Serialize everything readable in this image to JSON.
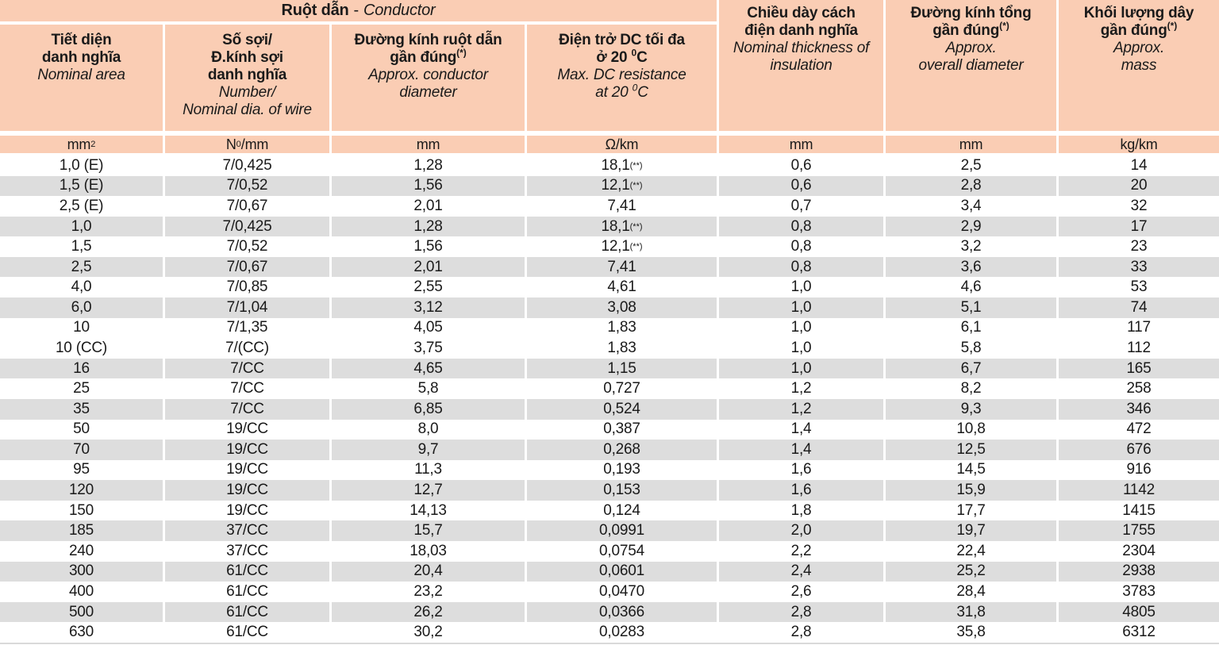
{
  "banner": {
    "vi": "Ruột dẫn",
    "dash": "-",
    "en": "Conductor"
  },
  "columns": [
    {
      "id": "nominal-area",
      "vi": [
        "Tiết diện",
        "danh nghĩa"
      ],
      "en": [
        "Nominal area"
      ],
      "unit": "mm^{2}"
    },
    {
      "id": "number-nominal-dia-of-wire",
      "vi": [
        "Số sợi/",
        "Đ.kính sợi",
        "danh nghĩa"
      ],
      "en": [
        "Number/",
        "Nominal dia. of wire"
      ],
      "unit": "N^{0}/mm"
    },
    {
      "id": "approx-conductor-diameter",
      "vi": [
        "Đường kính ruột dẫn",
        "gần đúng^{(*)}"
      ],
      "en": [
        "Approx. conductor",
        "diameter"
      ],
      "unit": "mm"
    },
    {
      "id": "max-dc-resistance",
      "vi": [
        "Điện trở DC tối đa",
        "ở 20 ^{0}C"
      ],
      "en": [
        "Max. DC resistance",
        "at 20 ^{0}C"
      ],
      "unit": "Ω/km"
    },
    {
      "id": "nominal-insulation-thickness",
      "vi": [
        "Chiều dày cách",
        "điện danh nghĩa"
      ],
      "en": [
        "Nominal thickness of",
        "insulation"
      ],
      "unit": "mm"
    },
    {
      "id": "approx-overall-diameter",
      "vi": [
        "Đường kính tổng",
        "gần đúng^{(*)}"
      ],
      "en": [
        "Approx.",
        "overall diameter"
      ],
      "unit": "mm"
    },
    {
      "id": "approx-mass",
      "vi": [
        "Khối lượng dây",
        "gần đúng^{(*)}"
      ],
      "en": [
        "Approx.",
        "mass"
      ],
      "unit": "kg/km"
    }
  ],
  "rows": [
    {
      "shaded": false,
      "cells": [
        "1,0 (E)",
        "7/0,425",
        "1,28",
        "18,1 ^{(**)}",
        "0,6",
        "2,5",
        "14"
      ]
    },
    {
      "shaded": true,
      "cells": [
        "1,5 (E)",
        "7/0,52",
        "1,56",
        "12,1 ^{(**)}",
        "0,6",
        "2,8",
        "20"
      ]
    },
    {
      "shaded": false,
      "cells": [
        "2,5 (E)",
        "7/0,67",
        "2,01",
        "7,41",
        "0,7",
        "3,4",
        "32"
      ]
    },
    {
      "shaded": true,
      "cells": [
        "1,0",
        "7/0,425",
        "1,28",
        "18,1 ^{(**)}",
        "0,8",
        "2,9",
        "17"
      ]
    },
    {
      "shaded": false,
      "cells": [
        "1,5",
        "7/0,52",
        "1,56",
        "12,1 ^{(**)}",
        "0,8",
        "3,2",
        "23"
      ]
    },
    {
      "shaded": true,
      "cells": [
        "2,5",
        "7/0,67",
        "2,01",
        "7,41",
        "0,8",
        "3,6",
        "33"
      ]
    },
    {
      "shaded": false,
      "cells": [
        "4,0",
        "7/0,85",
        "2,55",
        "4,61",
        "1,0",
        "4,6",
        "53"
      ]
    },
    {
      "shaded": true,
      "cells": [
        "6,0",
        "7/1,04",
        "3,12",
        "3,08",
        "1,0",
        "5,1",
        "74"
      ]
    },
    {
      "shaded": false,
      "cells": [
        "10",
        "7/1,35",
        "4,05",
        "1,83",
        "1,0",
        "6,1",
        "117"
      ]
    },
    {
      "shaded": false,
      "cells": [
        "10 (CC)",
        "7/(CC)",
        "3,75",
        "1,83",
        "1,0",
        "5,8",
        "112"
      ]
    },
    {
      "shaded": true,
      "cells": [
        "16",
        "7/CC",
        "4,65",
        "1,15",
        "1,0",
        "6,7",
        "165"
      ]
    },
    {
      "shaded": false,
      "cells": [
        "25",
        "7/CC",
        "5,8",
        "0,727",
        "1,2",
        "8,2",
        "258"
      ]
    },
    {
      "shaded": true,
      "cells": [
        "35",
        "7/CC",
        "6,85",
        "0,524",
        "1,2",
        "9,3",
        "346"
      ]
    },
    {
      "shaded": false,
      "cells": [
        "50",
        "19/CC",
        "8,0",
        "0,387",
        "1,4",
        "10,8",
        "472"
      ]
    },
    {
      "shaded": true,
      "cells": [
        "70",
        "19/CC",
        "9,7",
        "0,268",
        "1,4",
        "12,5",
        "676"
      ]
    },
    {
      "shaded": false,
      "cells": [
        "95",
        "19/CC",
        "11,3",
        "0,193",
        "1,6",
        "14,5",
        "916"
      ]
    },
    {
      "shaded": true,
      "cells": [
        "120",
        "19/CC",
        "12,7",
        "0,153",
        "1,6",
        "15,9",
        "1142"
      ]
    },
    {
      "shaded": false,
      "cells": [
        "150",
        "19/CC",
        "14,13",
        "0,124",
        "1,8",
        "17,7",
        "1415"
      ]
    },
    {
      "shaded": true,
      "cells": [
        "185",
        "37/CC",
        "15,7",
        "0,0991",
        "2,0",
        "19,7",
        "1755"
      ]
    },
    {
      "shaded": false,
      "cells": [
        "240",
        "37/CC",
        "18,03",
        "0,0754",
        "2,2",
        "22,4",
        "2304"
      ]
    },
    {
      "shaded": true,
      "cells": [
        "300",
        "61/CC",
        "20,4",
        "0,0601",
        "2,4",
        "25,2",
        "2938"
      ]
    },
    {
      "shaded": false,
      "cells": [
        "400",
        "61/CC",
        "23,2",
        "0,0470",
        "2,6",
        "28,4",
        "3783"
      ]
    },
    {
      "shaded": true,
      "cells": [
        "500",
        "61/CC",
        "26,2",
        "0,0366",
        "2,8",
        "31,8",
        "4805"
      ]
    },
    {
      "shaded": false,
      "cells": [
        "630",
        "61/CC",
        "30,2",
        "0,0283",
        "2,8",
        "35,8",
        "6312"
      ]
    }
  ],
  "colors": {
    "header_bg": "#facdb4",
    "row_bg": "#ffffff",
    "row_shaded_bg": "#dddddd",
    "text": "#1a1a1a"
  }
}
